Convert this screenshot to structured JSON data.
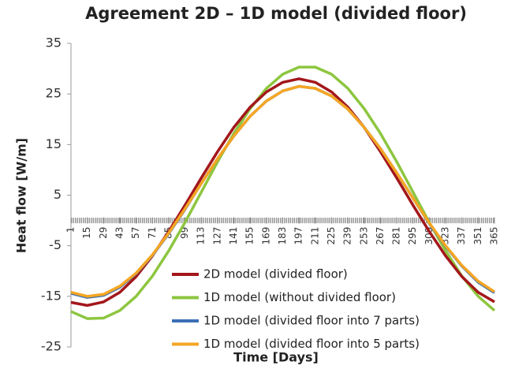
{
  "chart_data": {
    "type": "line",
    "title": "Agreement 2D – 1D model (divided floor)",
    "x_label": "Time [Days]",
    "y_label": "Heat flow [W/m]",
    "x": [
      1,
      15,
      29,
      43,
      57,
      71,
      85,
      99,
      113,
      127,
      141,
      155,
      169,
      183,
      197,
      211,
      225,
      239,
      253,
      267,
      281,
      295,
      309,
      323,
      337,
      351,
      365
    ],
    "xlim": [
      1,
      365
    ],
    "xticks": [
      1,
      15,
      29,
      43,
      57,
      71,
      85,
      99,
      113,
      127,
      141,
      155,
      169,
      183,
      197,
      211,
      225,
      239,
      253,
      267,
      281,
      295,
      309,
      323,
      337,
      351,
      365
    ],
    "ylim": [
      -25,
      35
    ],
    "yticks": [
      -25,
      -15,
      -5,
      5,
      15,
      25,
      35
    ],
    "grid": false,
    "legend": "bottom",
    "series": [
      {
        "name": "2D model (divided floor)",
        "color": "#a3171c",
        "values": [
          -16.2,
          -16.8,
          -16.1,
          -14.2,
          -11.1,
          -7.0,
          -2.2,
          3.0,
          8.4,
          13.6,
          18.4,
          22.4,
          25.4,
          27.3,
          28.0,
          27.3,
          25.4,
          22.4,
          18.4,
          13.6,
          8.4,
          3.0,
          -2.2,
          -7.0,
          -11.1,
          -14.2,
          -16.1
        ]
      },
      {
        "name": "1D model (without divided floor)",
        "color": "#8dc63f",
        "values": [
          -18.0,
          -19.4,
          -19.3,
          -17.8,
          -15.0,
          -11.0,
          -6.0,
          -0.4,
          5.6,
          11.6,
          17.2,
          22.1,
          26.1,
          28.9,
          30.3,
          30.3,
          28.9,
          26.1,
          22.1,
          17.2,
          11.6,
          5.6,
          -0.4,
          -6.0,
          -11.0,
          -15.0,
          -17.8
        ]
      },
      {
        "name": "1D model (divided floor into 7 parts)",
        "color": "#3b6fb6",
        "values": [
          -14.4,
          -15.2,
          -14.8,
          -13.2,
          -10.5,
          -6.9,
          -2.6,
          2.2,
          7.3,
          12.2,
          16.7,
          20.6,
          23.6,
          25.6,
          26.5,
          26.1,
          24.6,
          22.0,
          18.4,
          14.2,
          9.4,
          4.4,
          -0.6,
          -5.1,
          -9.0,
          -12.2,
          -14.3
        ]
      },
      {
        "name": "1D model (divided floor into 5 parts)",
        "color": "#f5a623",
        "values": [
          -14.2,
          -15.0,
          -14.6,
          -13.0,
          -10.4,
          -6.8,
          -2.5,
          2.3,
          7.3,
          12.2,
          16.7,
          20.6,
          23.6,
          25.6,
          26.5,
          26.1,
          24.6,
          22.0,
          18.4,
          14.2,
          9.4,
          4.4,
          -0.5,
          -5.0,
          -8.9,
          -12.0,
          -14.1
        ]
      }
    ]
  }
}
